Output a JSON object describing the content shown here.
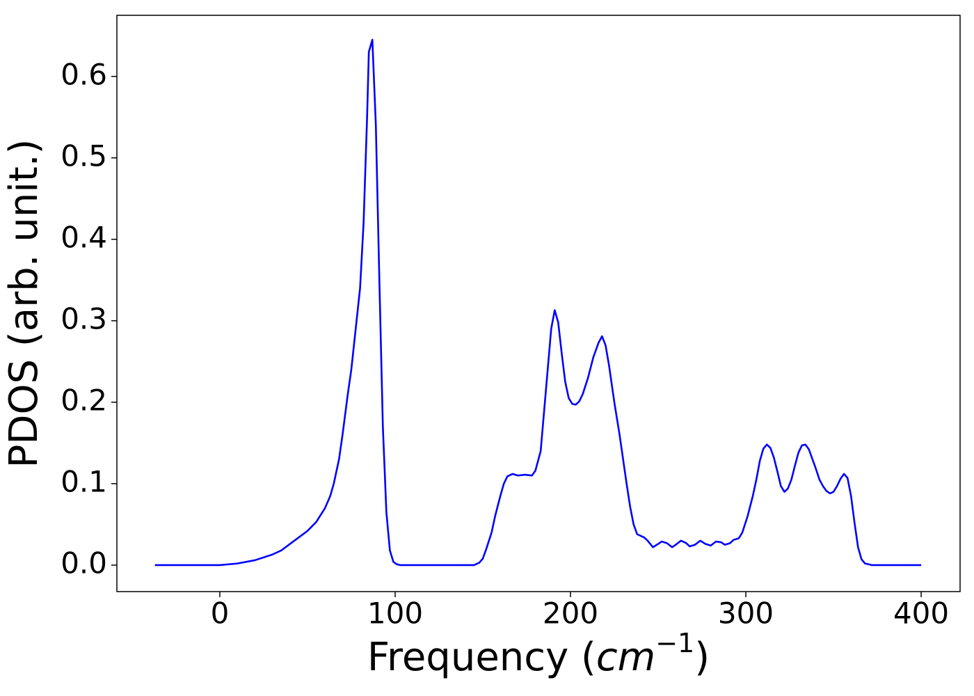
{
  "chart_data": {
    "type": "line",
    "xlabel_parts": [
      "Frequency (",
      "cm",
      "−1",
      ")"
    ],
    "ylabel": "PDOS (arb. unit.)",
    "x": [
      -37,
      0,
      10,
      20,
      30,
      35,
      40,
      50,
      55,
      60,
      63,
      65,
      68,
      70,
      73,
      75,
      77,
      80,
      82,
      84,
      85,
      87,
      89,
      91,
      93,
      95,
      97,
      99,
      101,
      103,
      145,
      148,
      150,
      152,
      155,
      157,
      160,
      162,
      164,
      167,
      170,
      174,
      178,
      180,
      183,
      185,
      187,
      189,
      191,
      193,
      195,
      197,
      199,
      201,
      203,
      205,
      207,
      210,
      213,
      216,
      218,
      220,
      222,
      225,
      228,
      230,
      232,
      234,
      236,
      238,
      242,
      244,
      247,
      250,
      252,
      255,
      258,
      260,
      263,
      266,
      268,
      271,
      274,
      277,
      280,
      283,
      286,
      288,
      291,
      293,
      296,
      298,
      301,
      304,
      306,
      308,
      310,
      312,
      314,
      316,
      318,
      320,
      322,
      324,
      326,
      328,
      330,
      332,
      334,
      336,
      338,
      340,
      342,
      344,
      346,
      348,
      350,
      352,
      354,
      356,
      358,
      360,
      362,
      364,
      366,
      368,
      370,
      372,
      400
    ],
    "series": [
      {
        "color": "#0000ff",
        "values": [
          0,
          0,
          0.002,
          0.006,
          0.013,
          0.018,
          0.026,
          0.042,
          0.053,
          0.07,
          0.085,
          0.1,
          0.13,
          0.16,
          0.21,
          0.24,
          0.28,
          0.34,
          0.42,
          0.55,
          0.63,
          0.645,
          0.54,
          0.35,
          0.17,
          0.065,
          0.018,
          0.004,
          0.001,
          0,
          0,
          0.003,
          0.008,
          0.02,
          0.04,
          0.06,
          0.085,
          0.1,
          0.109,
          0.112,
          0.11,
          0.111,
          0.11,
          0.116,
          0.14,
          0.19,
          0.24,
          0.29,
          0.313,
          0.298,
          0.26,
          0.225,
          0.205,
          0.198,
          0.197,
          0.201,
          0.21,
          0.23,
          0.255,
          0.273,
          0.281,
          0.27,
          0.245,
          0.2,
          0.16,
          0.13,
          0.1,
          0.072,
          0.05,
          0.038,
          0.034,
          0.03,
          0.022,
          0.026,
          0.029,
          0.027,
          0.022,
          0.025,
          0.03,
          0.027,
          0.023,
          0.025,
          0.03,
          0.026,
          0.024,
          0.029,
          0.028,
          0.025,
          0.027,
          0.031,
          0.033,
          0.04,
          0.06,
          0.085,
          0.105,
          0.128,
          0.143,
          0.148,
          0.144,
          0.132,
          0.115,
          0.097,
          0.09,
          0.094,
          0.105,
          0.122,
          0.138,
          0.147,
          0.148,
          0.142,
          0.13,
          0.118,
          0.105,
          0.097,
          0.091,
          0.088,
          0.09,
          0.097,
          0.106,
          0.112,
          0.107,
          0.085,
          0.052,
          0.022,
          0.007,
          0.002,
          0.001,
          0,
          0
        ]
      }
    ],
    "xlim": [
      -58.7,
      422.2
    ],
    "ylim": [
      -0.0325,
      0.675
    ],
    "xticks": [
      0,
      100,
      200,
      300,
      400
    ],
    "yticks": [
      {
        "value": 0,
        "label": "0.0"
      },
      0.1,
      0.2,
      0.3,
      0.4,
      0.5,
      0.6
    ]
  }
}
